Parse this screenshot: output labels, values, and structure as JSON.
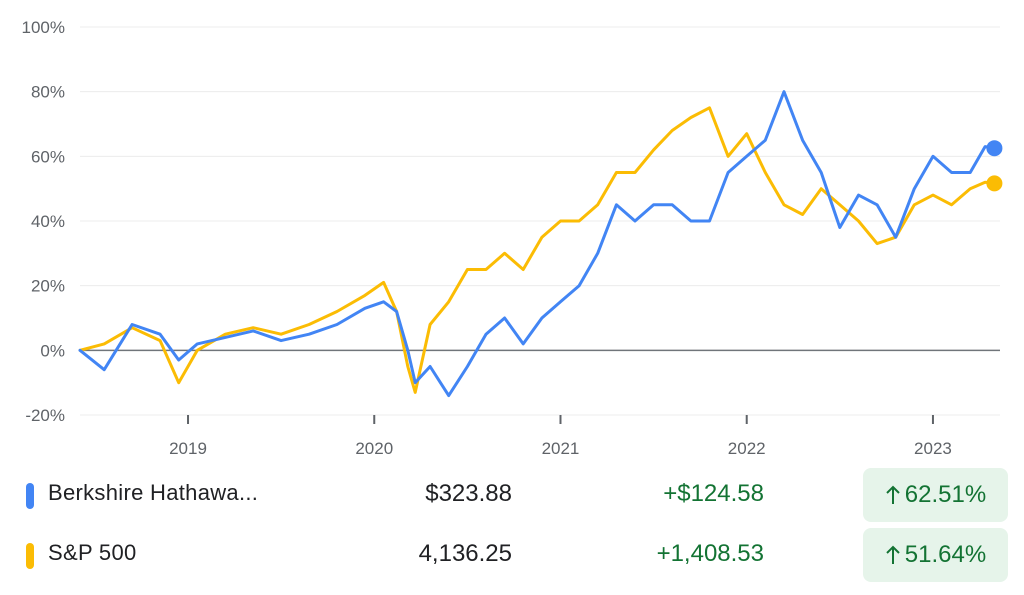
{
  "chart_data": {
    "type": "line",
    "y_unit": "%",
    "ylim": [
      -20,
      100
    ],
    "y_ticks": [
      "100%",
      "80%",
      "60%",
      "40%",
      "20%",
      "0%",
      "-20%"
    ],
    "x_ticks": [
      "2019",
      "2020",
      "2021",
      "2022",
      "2023"
    ],
    "xlim": [
      2018.42,
      2023.36
    ],
    "baseline": 0,
    "grid": true,
    "series": [
      {
        "name": "Berkshire Hathawa...",
        "color": "#4285f4",
        "x": [
          2018.42,
          2018.55,
          2018.7,
          2018.85,
          2018.95,
          2019.05,
          2019.2,
          2019.35,
          2019.5,
          2019.65,
          2019.8,
          2019.95,
          2020.05,
          2020.12,
          2020.18,
          2020.22,
          2020.3,
          2020.4,
          2020.5,
          2020.6,
          2020.7,
          2020.8,
          2020.9,
          2021.0,
          2021.1,
          2021.2,
          2021.3,
          2021.4,
          2021.5,
          2021.6,
          2021.7,
          2021.8,
          2021.9,
          2022.0,
          2022.1,
          2022.2,
          2022.3,
          2022.4,
          2022.5,
          2022.6,
          2022.7,
          2022.8,
          2022.9,
          2023.0,
          2023.1,
          2023.2,
          2023.28,
          2023.33
        ],
        "y": [
          0,
          -6,
          8,
          5,
          -3,
          2,
          4,
          6,
          3,
          5,
          8,
          13,
          15,
          12,
          0,
          -10,
          -5,
          -14,
          -5,
          5,
          10,
          2,
          10,
          15,
          20,
          30,
          45,
          40,
          45,
          45,
          40,
          40,
          55,
          60,
          65,
          80,
          65,
          55,
          38,
          48,
          45,
          35,
          50,
          60,
          55,
          55,
          63,
          62.51
        ]
      },
      {
        "name": "S&P 500",
        "color": "#fbbc04",
        "x": [
          2018.42,
          2018.55,
          2018.7,
          2018.85,
          2018.95,
          2019.05,
          2019.2,
          2019.35,
          2019.5,
          2019.65,
          2019.8,
          2019.95,
          2020.05,
          2020.12,
          2020.18,
          2020.22,
          2020.3,
          2020.4,
          2020.5,
          2020.6,
          2020.7,
          2020.8,
          2020.9,
          2021.0,
          2021.1,
          2021.2,
          2021.3,
          2021.4,
          2021.5,
          2021.6,
          2021.7,
          2021.8,
          2021.9,
          2022.0,
          2022.1,
          2022.2,
          2022.3,
          2022.4,
          2022.5,
          2022.6,
          2022.7,
          2022.8,
          2022.9,
          2023.0,
          2023.1,
          2023.2,
          2023.28,
          2023.33
        ],
        "y": [
          0,
          2,
          7,
          3,
          -10,
          0,
          5,
          7,
          5,
          8,
          12,
          17,
          21,
          12,
          -5,
          -13,
          8,
          15,
          25,
          25,
          30,
          25,
          35,
          40,
          40,
          45,
          55,
          55,
          62,
          68,
          72,
          75,
          60,
          67,
          55,
          45,
          42,
          50,
          45,
          40,
          33,
          35,
          45,
          48,
          45,
          50,
          52,
          51.64
        ]
      }
    ]
  },
  "legend": [
    {
      "name": "Berkshire Hathawa...",
      "color": "#4285f4",
      "price": "$323.88",
      "change": "+$124.58",
      "pct": "62.51%"
    },
    {
      "name": "S&P 500",
      "color": "#fbbc04",
      "price": "4,136.25",
      "change": "+1,408.53",
      "pct": "51.64%"
    }
  ],
  "icons": {
    "pct_change": "arrow-up-icon"
  }
}
